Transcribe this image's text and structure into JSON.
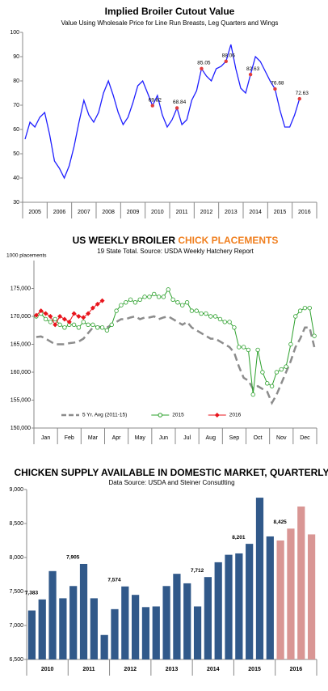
{
  "chart_data": [
    {
      "type": "line",
      "title": "Implied Broiler Cutout Value",
      "subtitle": "Value Using Wholesale Price for Line Run Breasts, Leg Quarters and Wings",
      "categories": [
        null,
        null,
        "2005",
        null,
        null,
        null,
        null,
        "2006",
        null,
        null,
        null,
        null,
        "2007",
        null,
        null,
        null,
        null,
        "2008",
        null,
        null,
        null,
        null,
        "2009",
        null,
        null,
        null,
        null,
        "2010",
        null,
        null,
        null,
        null,
        "2011",
        null,
        null,
        null,
        null,
        "2012",
        null,
        null,
        null,
        null,
        "2013",
        null,
        null,
        null,
        null,
        "2014",
        null,
        null,
        null,
        null,
        "2015",
        null,
        null,
        null,
        null,
        "2016",
        null,
        null
      ],
      "values": [
        56,
        63,
        61,
        65,
        67,
        58,
        47,
        44,
        40,
        45,
        53,
        63,
        72,
        66,
        63,
        67,
        75,
        80,
        74,
        67,
        62,
        65,
        71,
        78,
        80,
        75,
        69.82,
        74,
        66,
        61,
        64,
        68.84,
        62,
        64,
        72,
        76,
        85.05,
        82,
        80,
        85,
        86,
        88.06,
        95,
        85,
        77,
        75,
        82.63,
        90,
        88,
        84,
        80,
        76.68,
        68,
        61,
        61,
        66,
        72.63,
        null,
        null,
        null
      ],
      "value_labels": [
        null,
        null,
        null,
        null,
        null,
        null,
        null,
        null,
        null,
        null,
        null,
        null,
        null,
        null,
        null,
        null,
        null,
        null,
        null,
        null,
        null,
        null,
        null,
        null,
        null,
        null,
        "69.82",
        null,
        null,
        null,
        null,
        "68.84",
        null,
        null,
        null,
        null,
        "85.05",
        null,
        null,
        null,
        null,
        "88.06",
        null,
        null,
        null,
        null,
        "82.63",
        null,
        null,
        null,
        null,
        "76.68",
        null,
        null,
        null,
        null,
        "72.63",
        null,
        null,
        null
      ],
      "color": "#1f1fff",
      "label_color": "#e03c3c",
      "ylim": [
        30,
        100
      ],
      "yticks": [
        30,
        40,
        50,
        60,
        70,
        80,
        90,
        100
      ],
      "grid": false
    },
    {
      "type": "line",
      "title": "US WEEKLY BROILER ",
      "title_highlight": "CHICK PLACEMENTS",
      "title_highlight_color": "#f07f1f",
      "subtitle": "19 State Total.  Source:  USDA Weekly Hatchery Report",
      "y_label": "1000 placements",
      "categories": [
        null,
        null,
        "Jan",
        null,
        null,
        null,
        null,
        "Feb",
        null,
        null,
        null,
        null,
        "Mar",
        null,
        null,
        null,
        null,
        "Apr",
        null,
        null,
        null,
        null,
        "May",
        null,
        null,
        null,
        null,
        "Jun",
        null,
        null,
        null,
        null,
        "Jul",
        null,
        null,
        null,
        null,
        "Aug",
        null,
        null,
        null,
        null,
        "Sep",
        null,
        null,
        null,
        null,
        "Oct",
        null,
        null,
        null,
        null,
        "Nov",
        null,
        null,
        null,
        null,
        "Dec",
        null,
        null
      ],
      "series": [
        {
          "name": "5 Yr. Avg (2011-15)",
          "color": "#8c8c8c",
          "dashed": true,
          "marker": null,
          "values": [
            166300,
            166400,
            166000,
            165500,
            165000,
            165000,
            165000,
            165200,
            165300,
            165500,
            166000,
            167000,
            168000,
            168200,
            168000,
            168000,
            168500,
            169000,
            169500,
            169500,
            169800,
            170000,
            169500,
            169800,
            169800,
            170000,
            169500,
            169800,
            170000,
            169500,
            169000,
            168500,
            169000,
            168000,
            167500,
            167000,
            166500,
            166000,
            166000,
            165500,
            165000,
            164500,
            163500,
            161000,
            159000,
            158500,
            157000,
            157500,
            157000,
            156500,
            154500,
            156000,
            158000,
            160000,
            162000,
            164500,
            166000,
            168000,
            168000,
            164500
          ]
        },
        {
          "name": "2015",
          "color": "#2ca02c",
          "dashed": false,
          "marker": "circle",
          "values": [
            170000,
            170500,
            169500,
            169000,
            169500,
            168500,
            168000,
            168500,
            168500,
            168000,
            169000,
            168500,
            168500,
            168000,
            168000,
            167500,
            168500,
            171000,
            172000,
            172500,
            173000,
            172500,
            173000,
            173500,
            173500,
            174000,
            173500,
            173500,
            174800,
            173000,
            172500,
            172000,
            172500,
            171000,
            171000,
            170500,
            170500,
            170000,
            170000,
            169500,
            169000,
            169000,
            168000,
            164500,
            164500,
            164000,
            156000,
            164000,
            160000,
            158000,
            157500,
            160000,
            160500,
            161000,
            165000,
            170000,
            171000,
            171500,
            171500,
            166500
          ]
        },
        {
          "name": "2016",
          "color": "#e8141c",
          "dashed": false,
          "marker": "diamond",
          "values": [
            170200,
            171000,
            170500,
            170000,
            168500,
            170000,
            169500,
            169000,
            170500,
            170000,
            169800,
            170500,
            171500,
            172200,
            172800,
            null,
            null,
            null,
            null,
            null,
            null,
            null,
            null,
            null,
            null,
            null,
            null,
            null,
            null,
            null,
            null,
            null,
            null,
            null,
            null,
            null,
            null,
            null,
            null,
            null,
            null,
            null,
            null,
            null,
            null,
            null,
            null,
            null,
            null,
            null,
            null,
            null,
            null,
            null,
            null,
            null,
            null,
            null,
            null,
            null
          ]
        }
      ],
      "legend": "bottom",
      "ylim": [
        150000,
        180000
      ],
      "yticks": [
        {
          "value": 150000,
          "label": "150,000"
        },
        {
          "value": 155000,
          "label": "155,000"
        },
        {
          "value": 160000,
          "label": "160,000"
        },
        {
          "value": 165000,
          "label": "165,000"
        },
        {
          "value": 170000,
          "label": "170,000"
        },
        {
          "value": 175000,
          "label": "175,000"
        }
      ],
      "grid": false
    },
    {
      "type": "bar",
      "title": "CHICKEN SUPPLY AVAILABLE IN DOMESTIC MARKET, QUARTERLY",
      "subtitle": "Data Source: USDA and Steiner Consutlting",
      "groups": [
        {
          "label": "2010",
          "color": "#31598a",
          "values": [
            7220,
            7383,
            7800,
            7400
          ],
          "value_labels": [
            null,
            "7,383",
            null,
            null
          ]
        },
        {
          "label": "2011",
          "color": "#31598a",
          "values": [
            7580,
            7905,
            7400,
            6860
          ],
          "value_labels": [
            null,
            "7,905",
            null,
            null
          ]
        },
        {
          "label": "2012",
          "color": "#31598a",
          "values": [
            7240,
            7574,
            7450,
            7270
          ],
          "value_labels": [
            null,
            "7,574",
            null,
            null
          ]
        },
        {
          "label": "2013",
          "color": "#31598a",
          "values": [
            7280,
            7580,
            7760,
            7620
          ],
          "value_labels": [
            null,
            null,
            null,
            null
          ]
        },
        {
          "label": "2014",
          "color": "#31598a",
          "values": [
            7280,
            7712,
            7930,
            8040
          ],
          "value_labels": [
            null,
            "7,712",
            null,
            null
          ]
        },
        {
          "label": "2015",
          "color": "#31598a",
          "values": [
            8060,
            8201,
            8880,
            8310
          ],
          "value_labels": [
            null,
            "8,201",
            null,
            null
          ]
        },
        {
          "label": "2016",
          "color": "#d99694",
          "values": [
            8250,
            8425,
            8750,
            8340
          ],
          "value_labels": [
            null,
            "8,425",
            null,
            null
          ]
        }
      ],
      "ylim": [
        6500,
        9000
      ],
      "yticks": [
        {
          "value": 6500,
          "label": "6,500"
        },
        {
          "value": 7000,
          "label": "7,000"
        },
        {
          "value": 7500,
          "label": "7,500"
        },
        {
          "value": 8000,
          "label": "8,000"
        },
        {
          "value": 8500,
          "label": "8,500"
        },
        {
          "value": 9000,
          "label": "9,000"
        }
      ],
      "grid": false
    }
  ]
}
